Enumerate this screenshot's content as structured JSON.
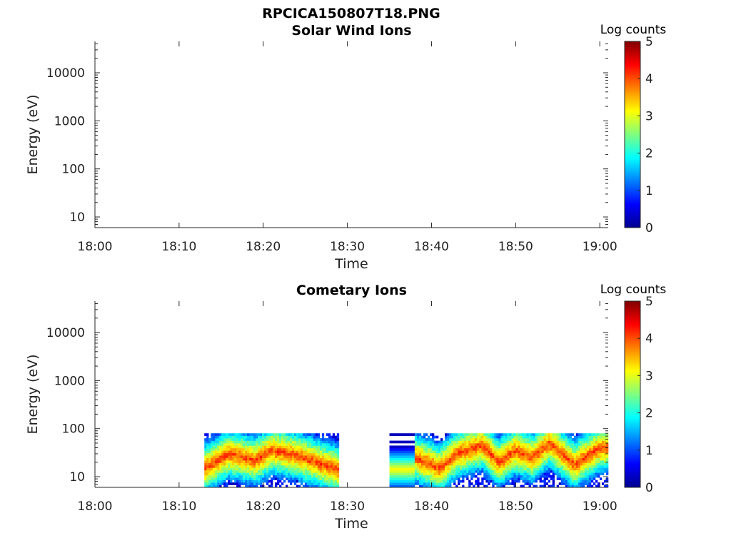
{
  "figure_title": "RPCICA150807T18.PNG",
  "chart_data": [
    {
      "type": "heatmap",
      "title": "Solar Wind Ions",
      "xlabel": "Time",
      "ylabel": "Energy (eV)",
      "x_ticks": [
        "18:00",
        "18:10",
        "18:20",
        "18:30",
        "18:40",
        "18:50",
        "19:00"
      ],
      "xlim": [
        "18:00",
        "19:01"
      ],
      "y_scale": "log",
      "y_ticks": [
        "10",
        "100",
        "1000",
        "10000"
      ],
      "ylim": [
        6,
        45000
      ],
      "colorbar": {
        "label": "Log counts",
        "ticks": [
          "0",
          "1",
          "2",
          "3",
          "4",
          "5"
        ],
        "range": [
          0,
          5
        ],
        "colormap": "jet"
      },
      "data": "empty"
    },
    {
      "type": "heatmap",
      "title": "Cometary Ions",
      "xlabel": "Time",
      "ylabel": "Energy (eV)",
      "x_ticks": [
        "18:00",
        "18:10",
        "18:20",
        "18:30",
        "18:40",
        "18:50",
        "19:00"
      ],
      "xlim": [
        "18:00",
        "19:01"
      ],
      "y_scale": "log",
      "y_ticks": [
        "10",
        "100",
        "1000",
        "10000"
      ],
      "ylim": [
        6,
        45000
      ],
      "colorbar": {
        "label": "Log counts",
        "ticks": [
          "0",
          "1",
          "2",
          "3",
          "4",
          "5"
        ],
        "range": [
          0,
          5
        ],
        "colormap": "jet"
      },
      "data_segments": [
        {
          "start": "18:13",
          "end": "18:29",
          "energy_range_eV": [
            6,
            80
          ],
          "peak_energy_eV": [
            [
              "18:13",
              15
            ],
            [
              "18:16",
              30
            ],
            [
              "18:19",
              22
            ],
            [
              "18:21",
              35
            ],
            [
              "18:24",
              28
            ],
            [
              "18:27",
              18
            ],
            [
              "18:29",
              14
            ]
          ]
        },
        {
          "start": "18:35",
          "end": "18:38",
          "energy_range_eV": [
            6,
            80
          ],
          "banded": true
        },
        {
          "start": "18:38",
          "end": "19:01",
          "energy_range_eV": [
            6,
            80
          ],
          "peak_energy_eV": [
            [
              "18:38",
              25
            ],
            [
              "18:41",
              15
            ],
            [
              "18:43",
              30
            ],
            [
              "18:46",
              45
            ],
            [
              "18:48",
              20
            ],
            [
              "18:50",
              35
            ],
            [
              "18:52",
              25
            ],
            [
              "18:54",
              50
            ],
            [
              "18:57",
              18
            ],
            [
              "19:00",
              40
            ]
          ]
        }
      ]
    }
  ]
}
